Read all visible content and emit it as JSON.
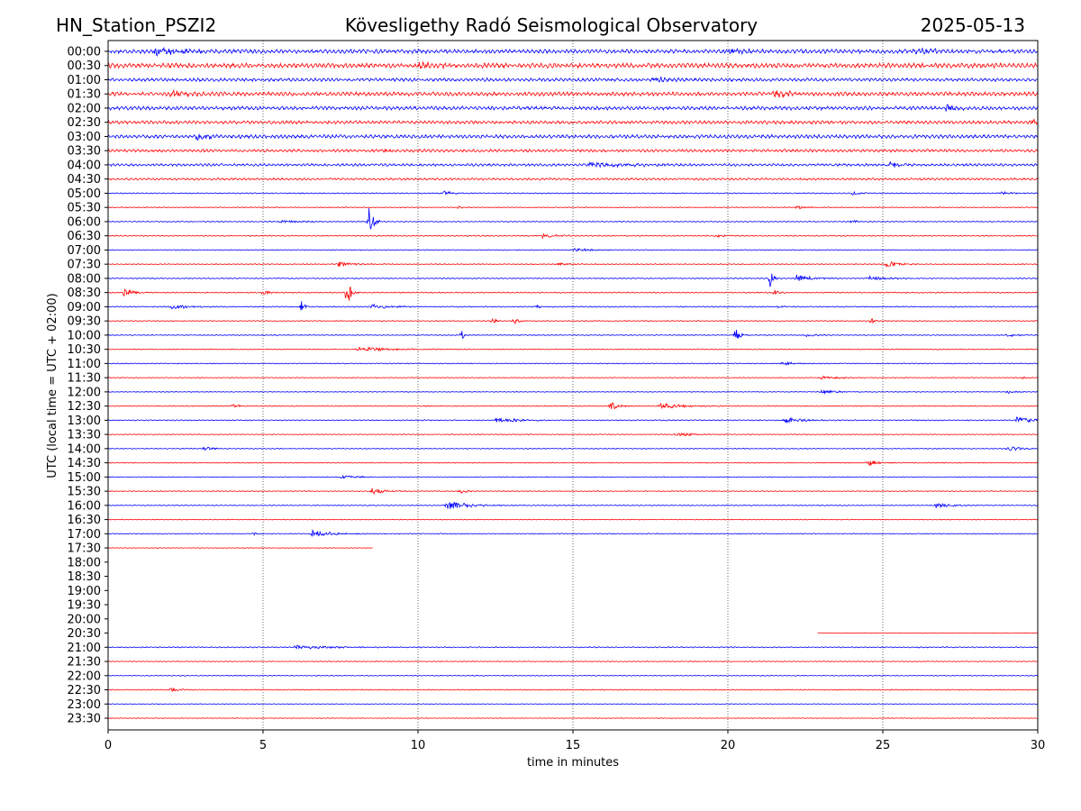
{
  "header": {
    "station": "HN_Station_PSZI2",
    "observatory": "Kövesligethy Radó Seismological Observatory",
    "date": "2025-05-13"
  },
  "chart_data": {
    "type": "line",
    "title": "Kövesligethy Radó Seismological Observatory",
    "xlabel": "time in minutes",
    "ylabel": "UTC (local time = UTC + 02:00)",
    "xlim": [
      0,
      30
    ],
    "x_ticks": [
      "0",
      "5",
      "10",
      "15",
      "20",
      "25",
      "30"
    ],
    "grid": "vertical dotted lines at 5-minute ticks",
    "colors": {
      "even_rows": "#0000ff",
      "odd_rows": "#ff0000",
      "grid": "#000000"
    },
    "rows": [
      {
        "label": "00:00",
        "start": 0,
        "end": 30,
        "noise": 2.2,
        "events": [
          [
            1.5,
            4,
            1.5
          ],
          [
            20,
            3,
            1
          ],
          [
            26,
            3,
            1
          ]
        ]
      },
      {
        "label": "00:30",
        "start": 0,
        "end": 30,
        "noise": 2.6,
        "events": [
          [
            10,
            3,
            1
          ]
        ]
      },
      {
        "label": "01:00",
        "start": 0,
        "end": 30,
        "noise": 1.8,
        "events": [
          [
            17.5,
            3,
            1
          ]
        ]
      },
      {
        "label": "01:30",
        "start": 0,
        "end": 30,
        "noise": 2.2,
        "events": [
          [
            2,
            3,
            1
          ],
          [
            21.5,
            3,
            1
          ]
        ]
      },
      {
        "label": "02:00",
        "start": 0,
        "end": 30,
        "noise": 2,
        "events": [
          [
            27,
            3,
            1
          ]
        ]
      },
      {
        "label": "02:30",
        "start": 0,
        "end": 30,
        "noise": 1.8,
        "events": [
          [
            29.8,
            4,
            0.3
          ]
        ]
      },
      {
        "label": "03:00",
        "start": 0,
        "end": 30,
        "noise": 2,
        "events": [
          [
            2.8,
            4,
            0.8
          ]
        ]
      },
      {
        "label": "03:30",
        "start": 0,
        "end": 30,
        "noise": 1.6,
        "events": [
          [
            8.8,
            2,
            1
          ]
        ]
      },
      {
        "label": "04:00",
        "start": 0,
        "end": 30,
        "noise": 1.4,
        "events": [
          [
            15.5,
            3,
            2
          ],
          [
            25.2,
            4,
            0.5
          ]
        ]
      },
      {
        "label": "04:30",
        "start": 0,
        "end": 30,
        "noise": 1.2,
        "events": []
      },
      {
        "label": "05:00",
        "start": 0,
        "end": 30,
        "noise": 0.6,
        "events": [
          [
            10.8,
            3,
            0.4
          ],
          [
            28.8,
            2,
            0.5
          ],
          [
            24,
            2,
            0.4
          ]
        ]
      },
      {
        "label": "05:30",
        "start": 0,
        "end": 30,
        "noise": 0.5,
        "events": [
          [
            22.2,
            2,
            0.6
          ],
          [
            11.3,
            3,
            0.1
          ]
        ]
      },
      {
        "label": "06:00",
        "start": 0,
        "end": 30,
        "noise": 0.5,
        "events": [
          [
            8.4,
            20,
            0.2
          ],
          [
            5.5,
            2,
            1
          ],
          [
            24,
            3,
            0.2
          ]
        ]
      },
      {
        "label": "06:30",
        "start": 0,
        "end": 30,
        "noise": 0.6,
        "events": [
          [
            14,
            3,
            0.6
          ],
          [
            19.6,
            2,
            0.5
          ]
        ]
      },
      {
        "label": "07:00",
        "start": 0,
        "end": 30,
        "noise": 0.5,
        "events": [
          [
            15,
            2,
            1
          ]
        ]
      },
      {
        "label": "07:30",
        "start": 0,
        "end": 30,
        "noise": 0.5,
        "events": [
          [
            7.4,
            3,
            0.7
          ],
          [
            25.1,
            4,
            0.5
          ],
          [
            14.5,
            2,
            0.5
          ]
        ]
      },
      {
        "label": "08:00",
        "start": 0,
        "end": 30,
        "noise": 0.6,
        "events": [
          [
            21.35,
            14,
            0.15
          ],
          [
            22.2,
            4,
            0.8
          ],
          [
            24.5,
            3,
            0.8
          ]
        ]
      },
      {
        "label": "08:30",
        "start": 0,
        "end": 30,
        "noise": 0.6,
        "events": [
          [
            0.5,
            4,
            0.5
          ],
          [
            7.7,
            24,
            0.15
          ],
          [
            21.5,
            8,
            0.15
          ],
          [
            5,
            3,
            0.3
          ]
        ]
      },
      {
        "label": "09:00",
        "start": 0,
        "end": 30,
        "noise": 0.6,
        "events": [
          [
            6.2,
            14,
            0.12
          ],
          [
            2,
            3,
            0.8
          ],
          [
            8.5,
            3,
            0.8
          ],
          [
            13.8,
            6,
            0.1
          ],
          [
            21.6,
            3,
            0.2
          ]
        ]
      },
      {
        "label": "09:30",
        "start": 0,
        "end": 30,
        "noise": 0.5,
        "events": [
          [
            12.4,
            6,
            0.12
          ],
          [
            13.1,
            4,
            0.3
          ],
          [
            24.6,
            6,
            0.15
          ]
        ]
      },
      {
        "label": "10:00",
        "start": 0,
        "end": 30,
        "noise": 0.5,
        "events": [
          [
            11.4,
            6,
            0.15
          ],
          [
            20.2,
            12,
            0.2
          ],
          [
            22.5,
            2,
            0.5
          ],
          [
            29,
            2,
            0.5
          ]
        ]
      },
      {
        "label": "10:30",
        "start": 0,
        "end": 30,
        "noise": 0.5,
        "events": [
          [
            8,
            3,
            1.5
          ]
        ]
      },
      {
        "label": "11:00",
        "start": 0,
        "end": 30,
        "noise": 0.5,
        "events": [
          [
            21.7,
            2,
            0.8
          ]
        ]
      },
      {
        "label": "11:30",
        "start": 0,
        "end": 30,
        "noise": 0.4,
        "events": [
          [
            23,
            2,
            1
          ],
          [
            29.5,
            2,
            0.2
          ]
        ]
      },
      {
        "label": "12:00",
        "start": 0,
        "end": 30,
        "noise": 0.4,
        "events": [
          [
            23,
            2,
            0.8
          ],
          [
            29,
            2,
            0.4
          ]
        ]
      },
      {
        "label": "12:30",
        "start": 0,
        "end": 30,
        "noise": 0.5,
        "events": [
          [
            16.2,
            5,
            0.4
          ],
          [
            17.8,
            3,
            1.2
          ],
          [
            4,
            2,
            0.5
          ]
        ]
      },
      {
        "label": "13:00",
        "start": 0,
        "end": 30,
        "noise": 0.6,
        "events": [
          [
            12.5,
            3,
            1
          ],
          [
            21.8,
            3,
            1
          ],
          [
            29.3,
            4,
            0.8
          ]
        ]
      },
      {
        "label": "13:30",
        "start": 0,
        "end": 30,
        "noise": 0.4,
        "events": [
          [
            18.3,
            2,
            1
          ]
        ]
      },
      {
        "label": "14:00",
        "start": 0,
        "end": 30,
        "noise": 0.5,
        "events": [
          [
            3.1,
            3,
            0.4
          ],
          [
            29,
            3,
            0.8
          ]
        ]
      },
      {
        "label": "14:30",
        "start": 0,
        "end": 30,
        "noise": 0.4,
        "events": [
          [
            24.5,
            4,
            0.5
          ]
        ]
      },
      {
        "label": "15:00",
        "start": 0,
        "end": 30,
        "noise": 0.4,
        "events": [
          [
            7.5,
            2,
            0.8
          ]
        ]
      },
      {
        "label": "15:30",
        "start": 0,
        "end": 30,
        "noise": 0.4,
        "events": [
          [
            8.5,
            4,
            0.6
          ],
          [
            11.3,
            3,
            0.4
          ]
        ]
      },
      {
        "label": "16:00",
        "start": 0,
        "end": 30,
        "noise": 0.5,
        "events": [
          [
            10.9,
            5,
            1
          ],
          [
            26.7,
            3,
            0.8
          ]
        ]
      },
      {
        "label": "16:30",
        "start": 0,
        "end": 30,
        "noise": 0.4,
        "events": []
      },
      {
        "label": "17:00",
        "start": 0,
        "end": 30,
        "noise": 0.5,
        "events": [
          [
            4.7,
            3,
            0.1
          ],
          [
            6.5,
            4,
            1
          ]
        ]
      },
      {
        "label": "17:30",
        "start": 0,
        "end": 8.55,
        "noise": 0.3,
        "events": []
      },
      {
        "label": "18:00",
        "start": null,
        "end": null,
        "noise": 0,
        "events": []
      },
      {
        "label": "18:30",
        "start": null,
        "end": null,
        "noise": 0,
        "events": []
      },
      {
        "label": "19:00",
        "start": null,
        "end": null,
        "noise": 0,
        "events": []
      },
      {
        "label": "19:30",
        "start": null,
        "end": null,
        "noise": 0,
        "events": []
      },
      {
        "label": "20:00",
        "start": null,
        "end": null,
        "noise": 0,
        "events": []
      },
      {
        "label": "20:30",
        "start": 22.9,
        "end": 30,
        "noise": 0.3,
        "events": []
      },
      {
        "label": "21:00",
        "start": 0,
        "end": 30,
        "noise": 0.6,
        "events": [
          [
            6,
            2,
            2
          ]
        ]
      },
      {
        "label": "21:30",
        "start": 0,
        "end": 30,
        "noise": 0.4,
        "events": []
      },
      {
        "label": "22:00",
        "start": 0,
        "end": 30,
        "noise": 0.5,
        "events": []
      },
      {
        "label": "22:30",
        "start": 0,
        "end": 30,
        "noise": 0.5,
        "events": [
          [
            2,
            2,
            0.5
          ]
        ]
      },
      {
        "label": "23:00",
        "start": 0,
        "end": 30,
        "noise": 0.4,
        "events": []
      },
      {
        "label": "23:30",
        "start": 0,
        "end": 30,
        "noise": 0.3,
        "events": []
      }
    ]
  }
}
